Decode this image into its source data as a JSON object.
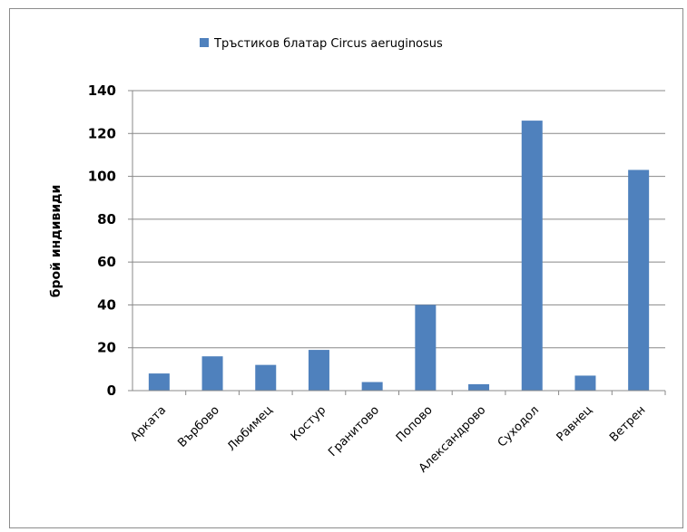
{
  "chart_data": {
    "type": "bar",
    "categories": [
      "Арката",
      "Върбово",
      "Любимец",
      "Костур",
      "Гранитово",
      "Попово",
      "Александрово",
      "Суходол",
      "Равнец",
      "Ветрен"
    ],
    "series": [
      {
        "name": "Тръстиков блатар Circus aeruginosus",
        "values": [
          8,
          16,
          12,
          19,
          4,
          40,
          3,
          126,
          7,
          103
        ]
      }
    ],
    "title": "",
    "xlabel": "",
    "ylabel": "брой индивиди",
    "ylim": [
      0,
      140
    ],
    "yticks": [
      0,
      20,
      40,
      60,
      80,
      100,
      120,
      140
    ],
    "grid": true,
    "legend_position": "top",
    "colors": {
      "bar": "#4f81bd",
      "grid": "#888888",
      "axis": "#888888"
    }
  }
}
